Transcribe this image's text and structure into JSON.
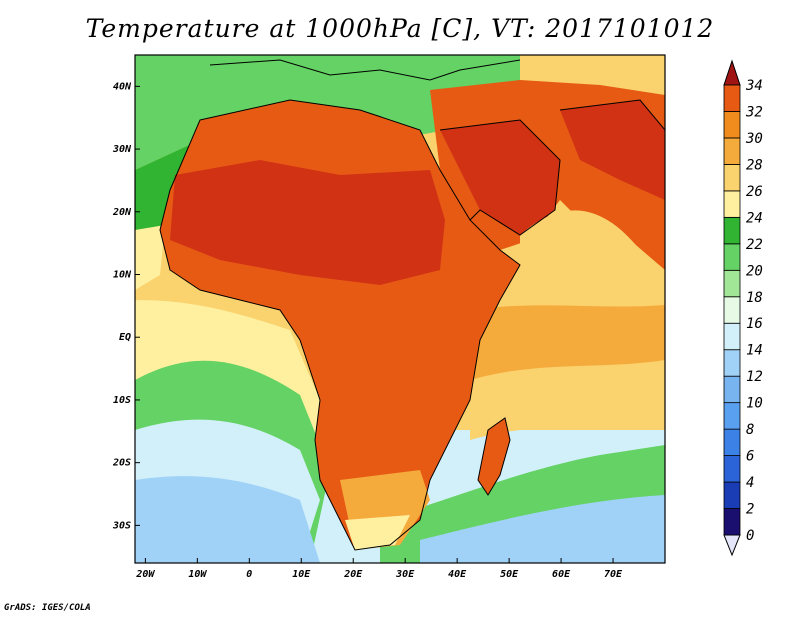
{
  "title": "Temperature at 1000hPa [C], VT: 2017101012",
  "credit": "GrADS: IGES/COLA",
  "map": {
    "lon_range": [
      -22,
      80
    ],
    "lat_range": [
      -36,
      45
    ],
    "x_ticks": [
      {
        "value": -20,
        "label": "20W"
      },
      {
        "value": -10,
        "label": "10W"
      },
      {
        "value": 0,
        "label": "0"
      },
      {
        "value": 10,
        "label": "10E"
      },
      {
        "value": 20,
        "label": "20E"
      },
      {
        "value": 30,
        "label": "30E"
      },
      {
        "value": 40,
        "label": "40E"
      },
      {
        "value": 50,
        "label": "50E"
      },
      {
        "value": 60,
        "label": "60E"
      },
      {
        "value": 70,
        "label": "70E"
      }
    ],
    "y_ticks": [
      {
        "value": 40,
        "label": "40N"
      },
      {
        "value": 30,
        "label": "30N"
      },
      {
        "value": 20,
        "label": "20N"
      },
      {
        "value": 10,
        "label": "10N"
      },
      {
        "value": 0,
        "label": "EQ"
      },
      {
        "value": -10,
        "label": "10S"
      },
      {
        "value": -20,
        "label": "20S"
      },
      {
        "value": -30,
        "label": "30S"
      }
    ]
  },
  "colorbar": {
    "levels": [
      "0",
      "2",
      "4",
      "6",
      "8",
      "10",
      "12",
      "14",
      "16",
      "18",
      "20",
      "22",
      "24",
      "26",
      "28",
      "30",
      "32",
      "34"
    ],
    "colors": [
      "#1a0e6e",
      "#1a3cb4",
      "#2a64d8",
      "#3c82e6",
      "#5aa0f0",
      "#78b4f0",
      "#a0d2f8",
      "#d2f0fa",
      "#e6fae6",
      "#a0e696",
      "#64d264",
      "#30b432",
      "#fff0a0",
      "#fad26e",
      "#f5aa3c",
      "#f08c1e",
      "#e65a14",
      "#d23214",
      "#a01414"
    ]
  }
}
